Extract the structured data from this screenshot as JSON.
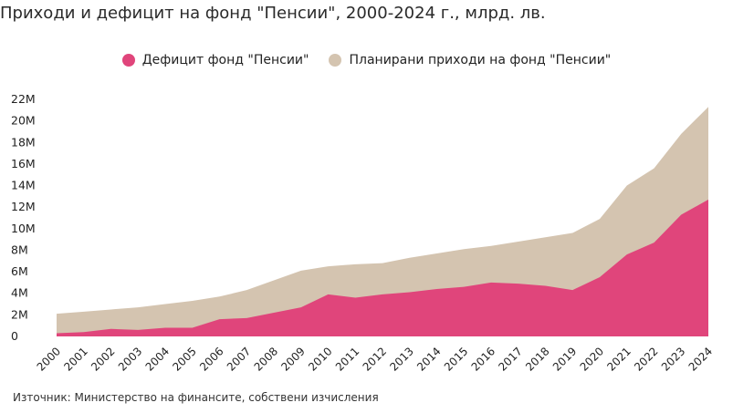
{
  "chart_data": {
    "type": "area",
    "title": "Приходи и дефицит на фонд \"Пенсии\", 2000-2024 г., млрд. лв.",
    "x": [
      "2000",
      "2001",
      "2002",
      "2003",
      "2004",
      "2005",
      "2006",
      "2007",
      "2008",
      "2009",
      "2010",
      "2011",
      "2012",
      "2013",
      "2014",
      "2015",
      "2016",
      "2017",
      "2018",
      "2019",
      "2020",
      "2021",
      "2022",
      "2023",
      "2024"
    ],
    "series": [
      {
        "name": "Дефицит фонд \"Пенсии\"",
        "color": "#e0457b",
        "values": [
          0.3,
          0.4,
          0.7,
          0.6,
          0.8,
          0.8,
          1.6,
          1.7,
          2.2,
          2.7,
          3.9,
          3.6,
          3.9,
          4.1,
          4.4,
          4.6,
          5.0,
          4.9,
          4.7,
          4.3,
          5.5,
          7.6,
          8.7,
          11.3,
          12.7
        ]
      },
      {
        "name": "Планирани приходи на фонд \"Пенсии\"",
        "color": "#d4c4b0",
        "values": [
          2.1,
          2.3,
          2.5,
          2.7,
          3.0,
          3.3,
          3.7,
          4.3,
          5.2,
          6.1,
          6.5,
          6.7,
          6.8,
          7.3,
          7.7,
          8.1,
          8.4,
          8.8,
          9.2,
          9.6,
          10.9,
          14.0,
          15.6,
          18.8,
          21.3
        ]
      }
    ],
    "xlabel": "",
    "ylabel": "",
    "ylim": [
      0,
      22
    ],
    "yticks": [
      0,
      2,
      4,
      6,
      8,
      10,
      12,
      14,
      16,
      18,
      20,
      22
    ],
    "ytick_labels": [
      "0",
      "2M",
      "4M",
      "6M",
      "8M",
      "10M",
      "12M",
      "14M",
      "16M",
      "18M",
      "20M",
      "22M"
    ],
    "grid": false,
    "legend": "top-center"
  },
  "source": "Източник: Министерство на финансите, собствени изчисления"
}
